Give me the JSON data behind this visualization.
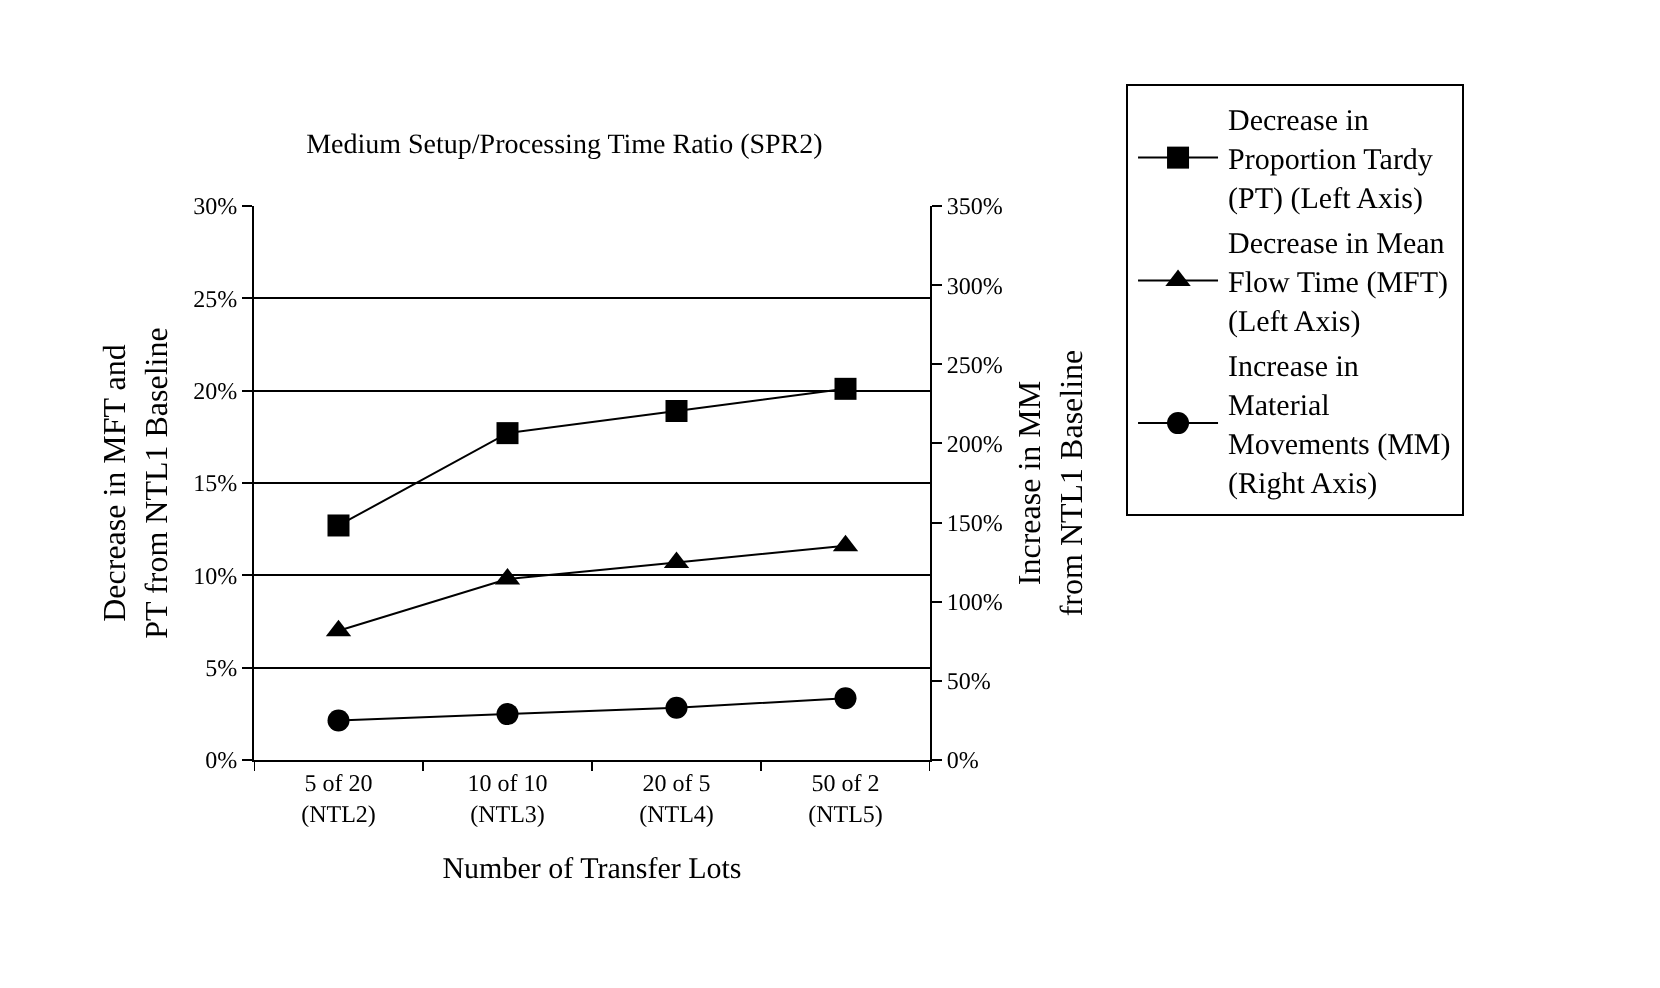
{
  "chart_data": {
    "type": "line",
    "title": "Medium Setup/Processing Time Ratio (SPR2)",
    "xlabel": "Number of Transfer Lots",
    "ylabel": "Decrease in MFT and\nPT from NTL1 Baseline",
    "y2label": "Increase in MM\nfrom NTL1 Baseline",
    "categories": [
      "5 of 20\n(NTL2)",
      "10 of 10\n(NTL3)",
      "20 of 5\n(NTL4)",
      "50 of 2\n(NTL5)"
    ],
    "series": [
      {
        "name": "Decrease in\nProportion Tardy\n(PT) (Left Axis)",
        "color": "#000000",
        "marker": "square",
        "values": [
          0.127,
          0.177,
          0.189,
          0.201
        ]
      },
      {
        "name": "Decrease in Mean\nFlow Time (MFT)\n(Left Axis)",
        "color": "#000000",
        "marker": "triangle",
        "values": [
          0.07,
          0.098,
          0.107,
          0.116
        ]
      },
      {
        "name": "Increase in\nMaterial\nMovements (MM)\n(Right Axis)",
        "color": "#000000",
        "marker": "circle",
        "axis": "y2",
        "values": [
          0.25,
          0.29,
          0.33,
          0.39
        ]
      }
    ],
    "ylim": [
      0,
      0.3
    ],
    "yticks": [
      {
        "value": 0,
        "label": "0%"
      },
      {
        "value": 0.05,
        "label": "5%"
      },
      {
        "value": 0.1,
        "label": "10%"
      },
      {
        "value": 0.15,
        "label": "15%"
      },
      {
        "value": 0.2,
        "label": "20%"
      },
      {
        "value": 0.25,
        "label": "25%"
      },
      {
        "value": 0.3,
        "label": "30%"
      }
    ],
    "y2lim": [
      0,
      3.5
    ],
    "y2ticks": [
      {
        "value": 0,
        "label": "0%"
      },
      {
        "value": 0.5,
        "label": "50%"
      },
      {
        "value": 1,
        "label": "100%"
      },
      {
        "value": 1.5,
        "label": "150%"
      },
      {
        "value": 2,
        "label": "200%"
      },
      {
        "value": 2.5,
        "label": "250%"
      },
      {
        "value": 3,
        "label": "300%"
      },
      {
        "value": 3.5,
        "label": "350%"
      }
    ],
    "grid": "y",
    "legend": "right",
    "line_style": "solid"
  }
}
